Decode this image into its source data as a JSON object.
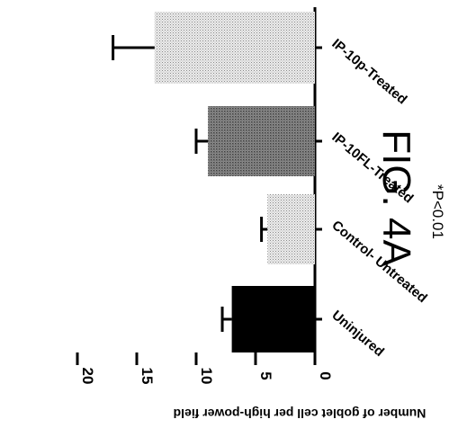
{
  "chart_data": {
    "type": "bar",
    "title": "FIG. 4A",
    "ylabel": "Number of goblet cell per high-power field",
    "xlabel": "",
    "categories": [
      "Uninjured",
      "Control- Untreated",
      "IP-10FL-Treated",
      "IP-10p-Treated"
    ],
    "values": [
      7,
      4,
      9,
      13.5
    ],
    "errors": [
      0.8,
      0.5,
      1.0,
      3.5
    ],
    "ylim": [
      0,
      20
    ],
    "yticks": [
      "0",
      "5",
      "10",
      "15",
      "20"
    ],
    "annotation": "*P<0.01",
    "bar_patterns": [
      "solid",
      "light-stipple",
      "dark-stipple",
      "light-stipple"
    ],
    "grid": false,
    "orientation": "rotated 90 degrees clockwise"
  }
}
